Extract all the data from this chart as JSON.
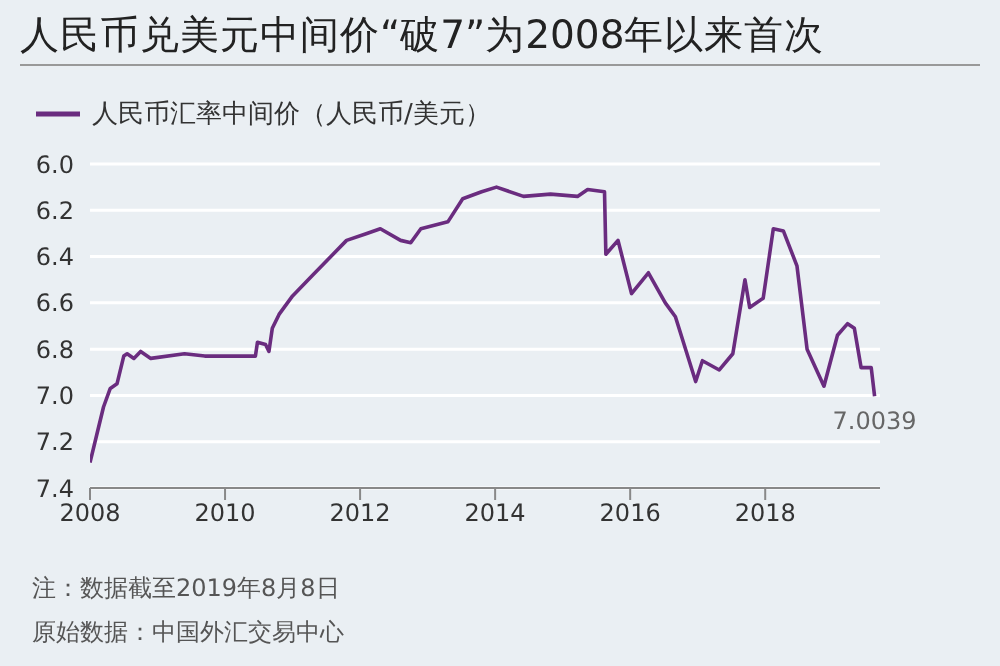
{
  "chart_data": {
    "type": "line",
    "title": "人民币兑美元中间价“破7”为2008年以来首次",
    "legend": "top left",
    "grid": "y",
    "marker": "none",
    "line_style": "solid",
    "xlim": [
      2008,
      2019.7
    ],
    "xticks": [
      2008,
      2010,
      2012,
      2014,
      2016,
      2018
    ],
    "ylim": [
      7.4,
      6.0
    ],
    "yticks": [
      {
        "value": 6,
        "label": "6.0"
      },
      6.2,
      6.4,
      6.6,
      6.8,
      {
        "value": 7,
        "label": "7.0"
      },
      7.2,
      7.4
    ],
    "series": [
      {
        "name": "人民币汇率中间价（人民币/美元）",
        "color": "#6a2c7f",
        "x": [
          2008.0,
          2008.1,
          2008.2,
          2008.3,
          2008.4,
          2008.5,
          2008.55,
          2008.65,
          2008.75,
          2008.9,
          2009.4,
          2009.7,
          2010.45,
          2010.48,
          2010.6,
          2010.65,
          2010.7,
          2010.8,
          2011.0,
          2011.3,
          2011.6,
          2011.8,
          2012.1,
          2012.3,
          2012.6,
          2012.75,
          2012.9,
          2013.3,
          2013.52,
          2013.8,
          2014.02,
          2014.42,
          2014.82,
          2015.22,
          2015.37,
          2015.62,
          2015.64,
          2015.82,
          2016.02,
          2016.27,
          2016.52,
          2016.67,
          2016.97,
          2017.07,
          2017.32,
          2017.52,
          2017.7,
          2017.77,
          2017.97,
          2018.12,
          2018.27,
          2018.47,
          2018.62,
          2018.87,
          2019.07,
          2019.22,
          2019.32,
          2019.42,
          2019.57,
          2019.62
        ],
        "values": [
          7.29,
          7.17,
          7.05,
          6.97,
          6.95,
          6.83,
          6.82,
          6.84,
          6.81,
          6.84,
          6.82,
          6.83,
          6.83,
          6.77,
          6.78,
          6.81,
          6.71,
          6.65,
          6.57,
          6.48,
          6.39,
          6.33,
          6.3,
          6.28,
          6.33,
          6.34,
          6.28,
          6.25,
          6.15,
          6.12,
          6.1,
          6.14,
          6.13,
          6.14,
          6.11,
          6.12,
          6.39,
          6.33,
          6.56,
          6.47,
          6.6,
          6.66,
          6.94,
          6.85,
          6.89,
          6.82,
          6.5,
          6.62,
          6.58,
          6.28,
          6.29,
          6.44,
          6.8,
          6.96,
          6.74,
          6.69,
          6.71,
          6.88,
          6.88,
          7.0039
        ]
      }
    ],
    "annotations": [
      {
        "text": "7.0039",
        "x": 2019.62,
        "y": 7.0039
      },
      "注：数据截至2019年8月8日",
      "原始数据：中国外汇交易中心"
    ]
  }
}
